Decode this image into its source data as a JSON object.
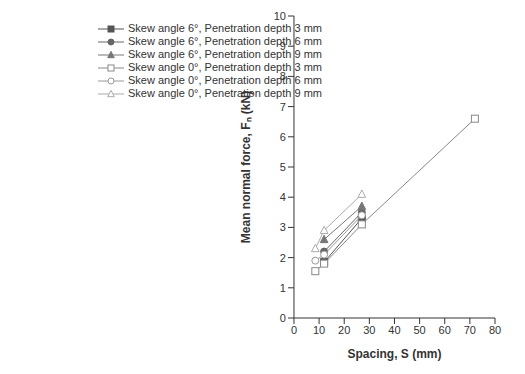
{
  "chart_data": {
    "type": "line",
    "x_label": "Spacing, S (mm)",
    "y_label": "Mean normal force, Fₙ (kN)",
    "xlim": [
      0,
      80
    ],
    "xticks": [
      0,
      10,
      20,
      30,
      40,
      50,
      60,
      70,
      80
    ],
    "ylim": [
      0,
      10
    ],
    "yticks": [
      0,
      1,
      2,
      3,
      4,
      5,
      6,
      7,
      8,
      9,
      10
    ],
    "grid": false,
    "legend": "upper left",
    "series": [
      {
        "name": "Skew angle 6°, Penetration depth 3 mm",
        "color": "#555555",
        "marker": "square",
        "x": [
          12,
          27
        ],
        "values": [
          1.85,
          3.3
        ]
      },
      {
        "name": "Skew angle 6°, Penetration depth 6 mm",
        "color": "#666666",
        "marker": "circle",
        "x": [
          12,
          27
        ],
        "values": [
          2.2,
          3.5
        ]
      },
      {
        "name": "Skew angle 6°, Penetration depth 9 mm",
        "color": "#777777",
        "marker": "triangle",
        "x": [
          12,
          27
        ],
        "values": [
          2.6,
          3.7
        ]
      },
      {
        "name": "Skew angle 0°, Penetration depth 3 mm",
        "color": "#888888",
        "marker": "open_square",
        "x": [
          8.5,
          12,
          27,
          72
        ],
        "values": [
          1.55,
          1.8,
          3.1,
          6.6
        ]
      },
      {
        "name": "Skew angle 0°, Penetration depth 6 mm",
        "color": "#999999",
        "marker": "open_circle",
        "x": [
          8.5,
          12,
          27
        ],
        "values": [
          1.9,
          2.1,
          3.4
        ]
      },
      {
        "name": "Skew angle 0°, Penetration depth 9 mm",
        "color": "#aaaaaa",
        "marker": "open_triangle",
        "x": [
          8.5,
          12,
          27
        ],
        "values": [
          2.3,
          2.9,
          4.1
        ]
      }
    ]
  }
}
